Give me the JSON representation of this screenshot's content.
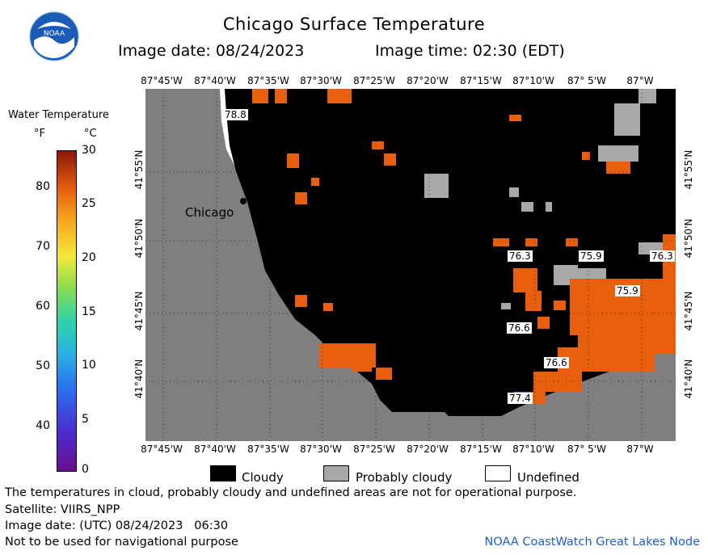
{
  "header": {
    "title": "Chicago Surface Temperature",
    "image_date": "Image date: 08/24/2023",
    "image_time": "Image time: 02:30 (EDT)",
    "logo_text": "NOAA"
  },
  "colorbar": {
    "title": "Water Temperature",
    "unit_f": "°F",
    "unit_c": "°C",
    "f_ticks": [
      "80",
      "70",
      "60",
      "50",
      "40"
    ],
    "c_ticks": [
      "30",
      "25",
      "20",
      "15",
      "10",
      "5",
      "0"
    ],
    "c_range": [
      0,
      30
    ]
  },
  "map": {
    "lon_labels_top": [
      "87°45'W",
      "87°40'W",
      "87°35'W",
      "87°30'W",
      "87°25'W",
      "87°20'W",
      "87°15'W",
      "87°10'W",
      "87° 5'W",
      "87°W"
    ],
    "lon_labels_bottom": [
      "87°45'W",
      "87°40'W",
      "87°35'W",
      "87°30'W",
      "87°25'W",
      "87°20'W",
      "87°15'W",
      "87°10'W",
      "87° 5'W",
      "87°W"
    ],
    "lat_labels": [
      "41°55'N",
      "41°50'N",
      "41°45'N",
      "41°40'N"
    ],
    "city_label": "Chicago",
    "temp_labels": [
      "78.8",
      "76.3",
      "75.9",
      "76.3",
      "75.9",
      "76.6",
      "76.6",
      "77.4"
    ],
    "colors": {
      "land": "#7f7f7f",
      "cloudy": "#000000",
      "probably_cloudy": "#a8a8a8",
      "warm_water": "#e8600d"
    }
  },
  "legend": {
    "cloudy": "Cloudy",
    "probably_cloudy": "Probably cloudy",
    "undefined": "Undefined"
  },
  "footer": {
    "note": "The temperatures in cloud, probably cloudy and undefined areas are not for operational purpose.",
    "satellite": "Satellite: VIIRS_NPP",
    "utc_date": "Image date: (UTC) 08/24/2023   06:30",
    "nav": "Not to be used for navigational purpose",
    "node": "NOAA CoastWatch Great Lakes Node"
  }
}
